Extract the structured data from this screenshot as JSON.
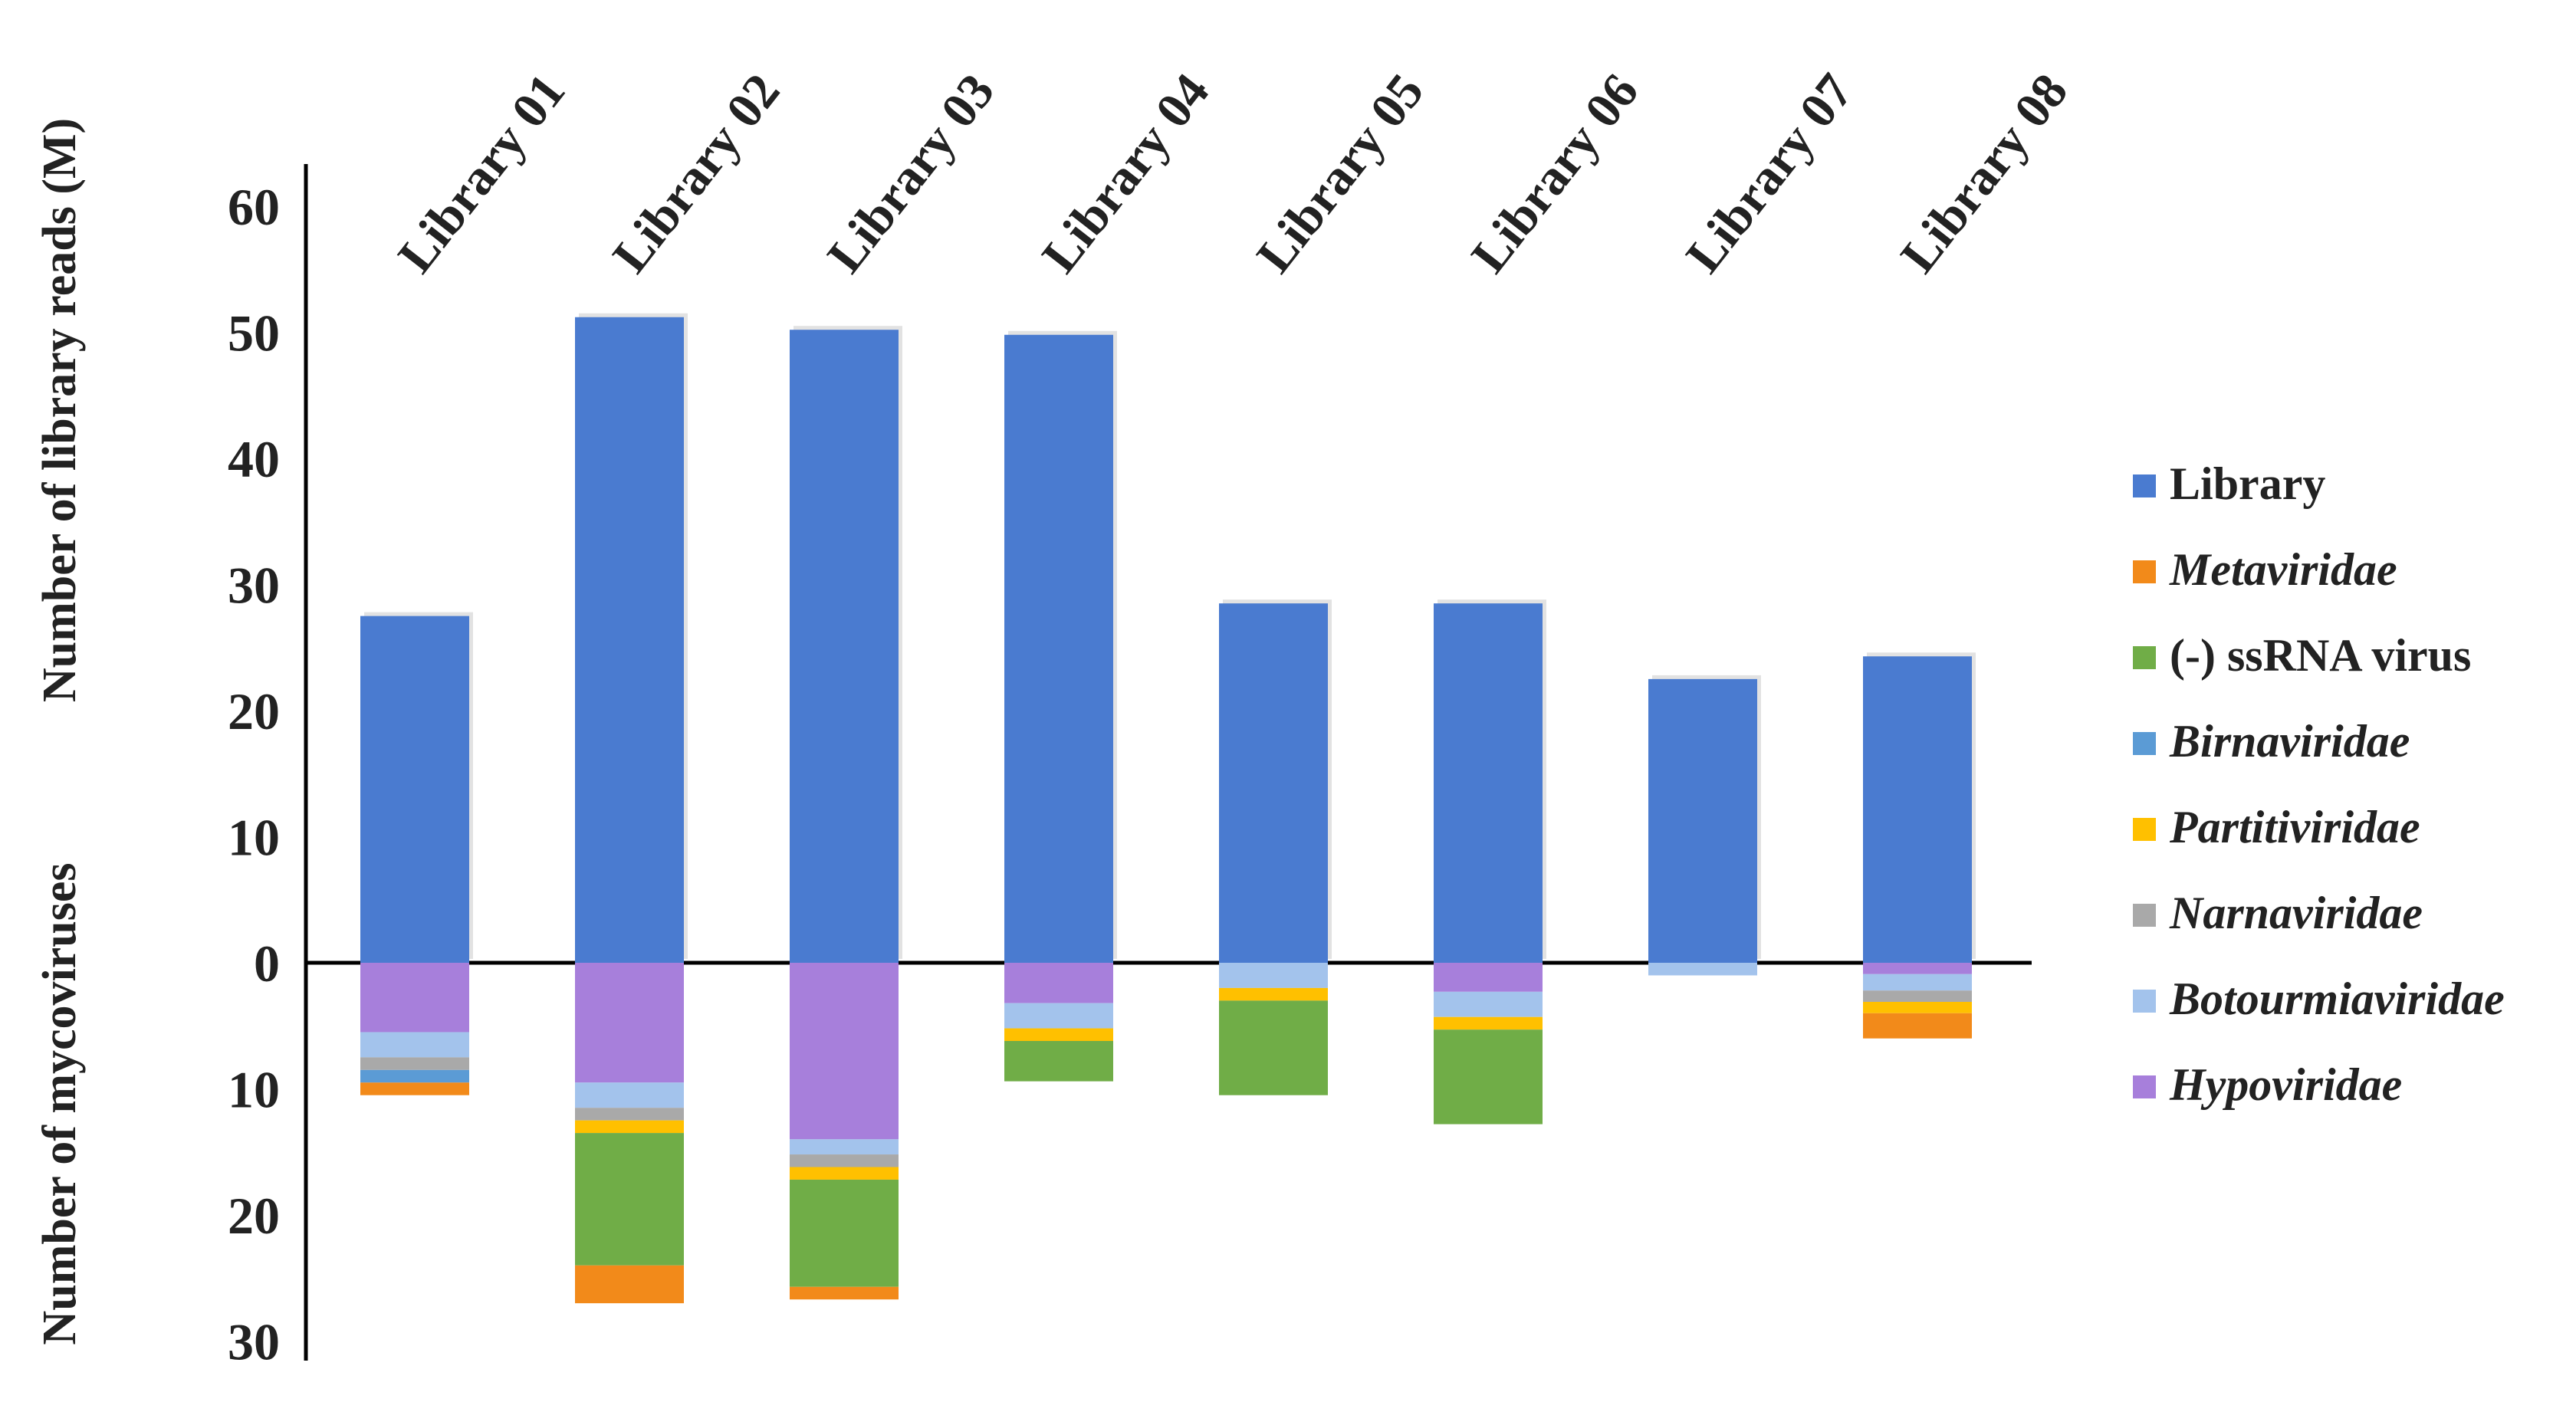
{
  "chart_data": {
    "type": "bar",
    "stacked": true,
    "categories": [
      "Library 01",
      "Library 02",
      "Library 03",
      "Library 04",
      "Library 05",
      "Library 06",
      "Library 07",
      "Library 08"
    ],
    "y_axis_labels": {
      "positive": "Number of library reads (M)",
      "negative": "Number of mycoviruses"
    },
    "ylim": [
      -30,
      60
    ],
    "ticks": [
      {
        "value": 60,
        "label": "60"
      },
      {
        "value": 50,
        "label": "50"
      },
      {
        "value": 40,
        "label": "40"
      },
      {
        "value": 30,
        "label": "30"
      },
      {
        "value": 20,
        "label": "20"
      },
      {
        "value": 10,
        "label": "10"
      },
      {
        "value": 0,
        "label": "0"
      },
      {
        "value": -10,
        "label": "10"
      },
      {
        "value": -20,
        "label": "20"
      },
      {
        "value": -30,
        "label": "30"
      }
    ],
    "legend_position": "right",
    "library_series": {
      "name": "Library",
      "color": "#4a7bd0",
      "values": [
        27.5,
        51.2,
        50.2,
        49.8,
        28.5,
        28.5,
        22.5,
        24.3
      ]
    },
    "mycovirus_series": [
      {
        "name": "Hypoviridae",
        "italic": true,
        "color": "#a77fdb",
        "values": [
          5.5,
          9.5,
          14,
          3.2,
          0,
          2.3,
          0,
          0.9
        ]
      },
      {
        "name": "Botourmiaviridae",
        "italic": true,
        "color": "#a3c3ec",
        "values": [
          2,
          2,
          1.2,
          2,
          2,
          2,
          1,
          1.3
        ]
      },
      {
        "name": "Narnaviridae",
        "italic": true,
        "color": "#a9a9a9",
        "values": [
          1,
          1,
          1,
          0,
          0,
          0,
          0,
          0.9
        ]
      },
      {
        "name": "Partitiviridae",
        "italic": true,
        "color": "#ffc000",
        "values": [
          0,
          1,
          1,
          1,
          1,
          1,
          0,
          0.9
        ]
      },
      {
        "name": "Birnaviridae",
        "italic": true,
        "color": "#5b9bd5",
        "values": [
          1,
          0,
          0,
          0,
          0,
          0,
          0,
          0
        ]
      },
      {
        "name": "(-) ssRNA virus",
        "italic": false,
        "color": "#70ad47",
        "values": [
          0,
          10.5,
          8.5,
          3.2,
          7.5,
          7.5,
          0,
          0
        ]
      },
      {
        "name": "Metaviridae",
        "italic": true,
        "color": "#f28a1a",
        "values": [
          1,
          3,
          1,
          0,
          0,
          0,
          0,
          2
        ]
      }
    ],
    "legend_order": [
      "Library",
      "Metaviridae",
      "(-) ssRNA virus",
      "Birnaviridae",
      "Partitiviridae",
      "Narnaviridae",
      "Botourmiaviridae",
      "Hypoviridae"
    ]
  }
}
